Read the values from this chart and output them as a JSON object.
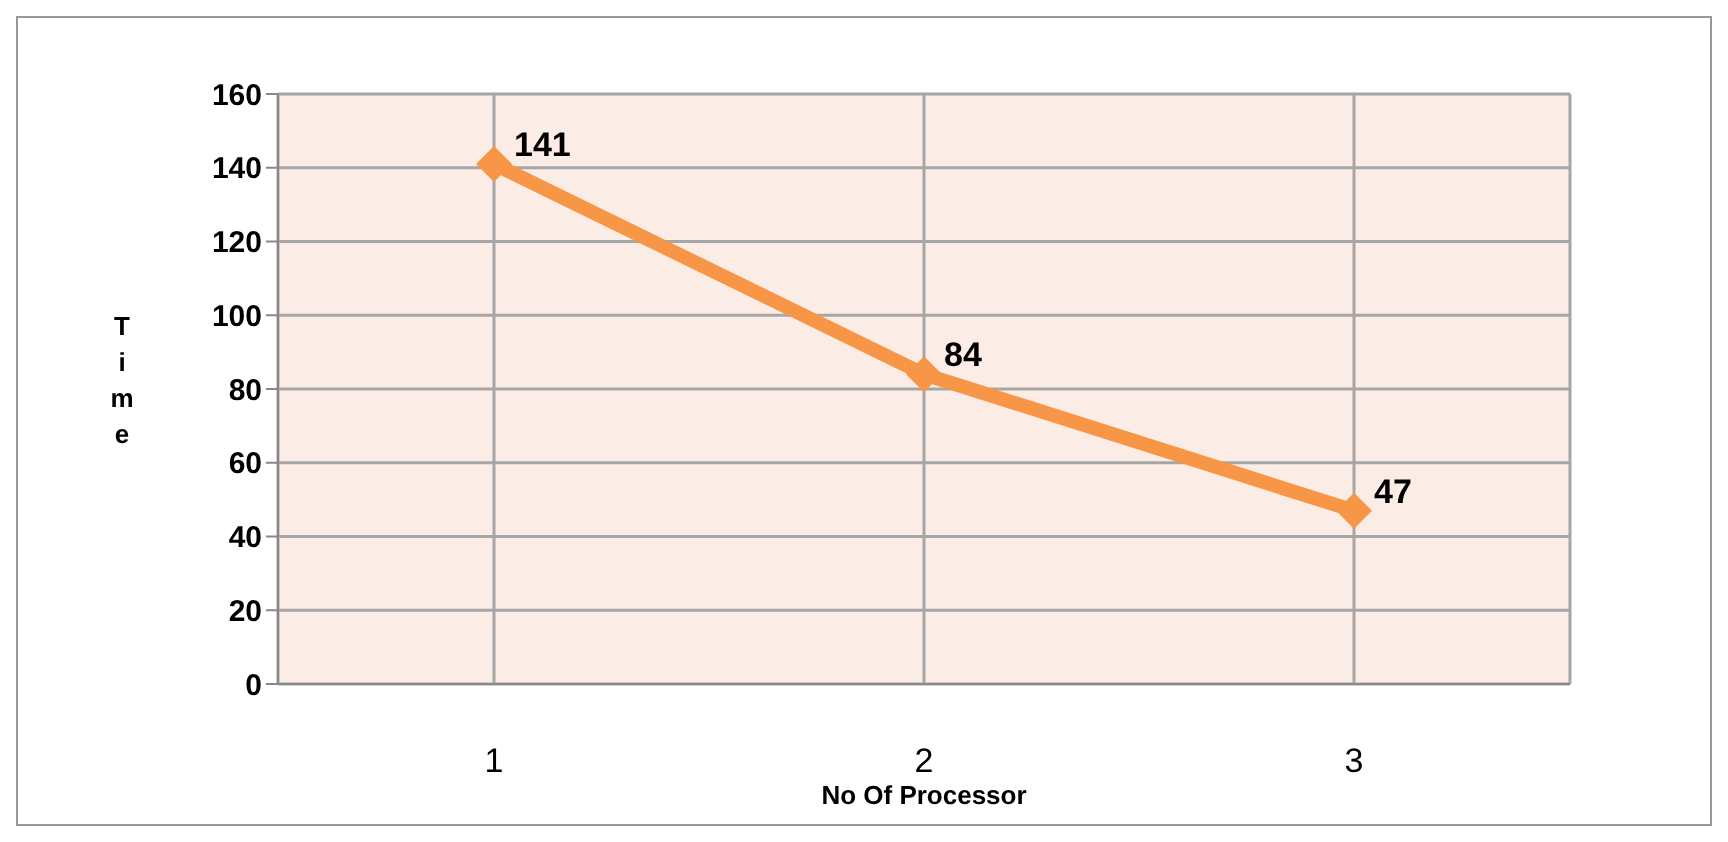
{
  "chart_data": {
    "type": "line",
    "xlabel": "No Of Processor",
    "ylabel": "Time",
    "categories": [
      "1",
      "2",
      "3"
    ],
    "series": [
      {
        "color": "#f79646",
        "values": [
          141,
          84,
          47
        ]
      }
    ],
    "ylim": [
      0,
      160
    ],
    "yticks": [
      0,
      20,
      40,
      60,
      80,
      100,
      120,
      140,
      160
    ],
    "grid": true,
    "marker": "diamond",
    "data_labels": true
  }
}
